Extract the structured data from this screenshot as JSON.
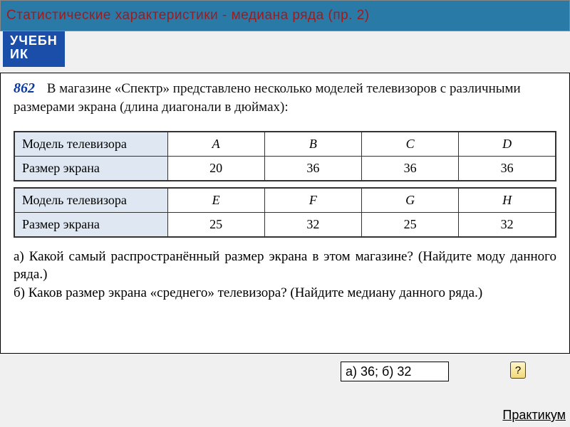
{
  "title": "Статистические характеристики - медиана ряда (пр. 2)",
  "tab_label": "УЧЕБНИК",
  "problem": {
    "number": "862",
    "intro": "В магазине «Спектр» представлено несколько моделей телевизоров с различными размерами экрана (длина диагонали в дюймах):"
  },
  "table": {
    "row_model_label": "Модель телевизора",
    "row_size_label": "Размер экрана",
    "top": {
      "models": [
        "A",
        "B",
        "C",
        "D"
      ],
      "sizes": [
        "20",
        "36",
        "36",
        "36"
      ]
    },
    "bottom": {
      "models": [
        "E",
        "F",
        "G",
        "H"
      ],
      "sizes": [
        "25",
        "32",
        "25",
        "32"
      ]
    },
    "header_bg": "#dfe8f2",
    "border_color": "#333333",
    "font_size": 18
  },
  "questions": {
    "a": "а) Какой самый распространённый размер экрана в этом магазине? (Найдите моду данного ряда.)",
    "b": "б) Каков размер экрана «среднего» телевизора? (Найдите медиану данного ряда.)"
  },
  "answer_value": "а) 36; б) 32",
  "reveal_label": "?",
  "footer_link": "Практикум",
  "colors": {
    "title_bar_bg": "#2a7aa8",
    "title_text": "#a01b1b",
    "tab_bg": "#1b4ea8",
    "tab_text": "#ffffff",
    "page_bg": "#f0f0f0",
    "problem_number": "#0a3aa0"
  }
}
